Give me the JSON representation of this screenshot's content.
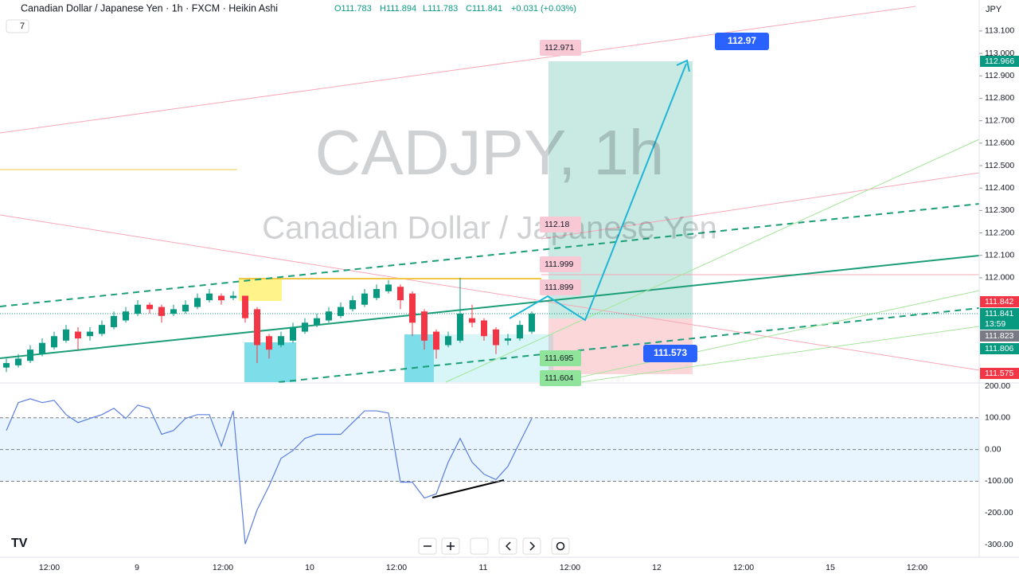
{
  "header": {
    "symbol": "Canadian Dollar / Japanese Yen · 1h · FXCM · Heikin Ashi",
    "open": "O111.783",
    "high": "H111.894",
    "low": "L111.783",
    "close": "C111.841",
    "change": "+0.031 (+0.03%)",
    "indicators_count": "7",
    "currency": "JPY"
  },
  "watermark": {
    "title": "CADJPY, 1h",
    "subtitle": "Canadian Dollar / Japanese Yen"
  },
  "chart_data": {
    "type": "candlestick",
    "ylim": [
      111.535,
      113.238
    ],
    "yticks": [
      {
        "value": 112.0,
        "label": "112.000"
      },
      {
        "value": 112.1,
        "label": "112.100"
      },
      {
        "value": 112.2,
        "label": "112.200"
      },
      {
        "value": 112.3,
        "label": "112.300"
      },
      {
        "value": 112.4,
        "label": "112.400"
      },
      {
        "value": 112.5,
        "label": "112.500"
      },
      {
        "value": 112.6,
        "label": "112.600"
      },
      {
        "value": 112.7,
        "label": "112.700"
      },
      {
        "value": 112.8,
        "label": "112.800"
      },
      {
        "value": 112.9,
        "label": "112.900"
      },
      {
        "value": 113.0,
        "label": "113.000"
      },
      {
        "value": 113.1,
        "label": "113.100"
      }
    ],
    "up_color": "#089981",
    "down_color": "#f23645",
    "candles": [
      [
        111.6,
        111.64,
        111.58,
        111.62
      ],
      [
        111.61,
        111.66,
        111.6,
        111.64
      ],
      [
        111.63,
        111.7,
        111.62,
        111.68
      ],
      [
        111.66,
        111.73,
        111.65,
        111.71
      ],
      [
        111.69,
        111.76,
        111.68,
        111.74
      ],
      [
        111.72,
        111.79,
        111.71,
        111.77
      ],
      [
        111.76,
        111.78,
        111.68,
        111.73
      ],
      [
        111.74,
        111.78,
        111.72,
        111.76
      ],
      [
        111.75,
        111.81,
        111.74,
        111.79
      ],
      [
        111.78,
        111.85,
        111.77,
        111.83
      ],
      [
        111.81,
        111.87,
        111.8,
        111.85
      ],
      [
        111.84,
        111.9,
        111.83,
        111.88
      ],
      [
        111.88,
        111.89,
        111.84,
        111.86
      ],
      [
        111.87,
        111.88,
        111.8,
        111.83
      ],
      [
        111.84,
        111.88,
        111.83,
        111.86
      ],
      [
        111.85,
        111.9,
        111.84,
        111.88
      ],
      [
        111.87,
        111.93,
        111.86,
        111.91
      ],
      [
        111.9,
        111.95,
        111.89,
        111.93
      ],
      [
        111.92,
        111.93,
        111.88,
        111.9
      ],
      [
        111.91,
        111.94,
        111.9,
        111.92
      ],
      [
        111.92,
        111.92,
        111.8,
        111.82
      ],
      [
        111.86,
        111.87,
        111.62,
        111.7
      ],
      [
        111.74,
        111.75,
        111.64,
        111.68
      ],
      [
        111.7,
        111.76,
        111.69,
        111.74
      ],
      [
        111.72,
        111.8,
        111.71,
        111.78
      ],
      [
        111.76,
        111.82,
        111.75,
        111.8
      ],
      [
        111.79,
        111.84,
        111.78,
        111.82
      ],
      [
        111.81,
        111.87,
        111.8,
        111.85
      ],
      [
        111.83,
        111.89,
        111.82,
        111.87
      ],
      [
        111.86,
        111.92,
        111.85,
        111.9
      ],
      [
        111.88,
        111.95,
        111.87,
        111.93
      ],
      [
        111.91,
        111.97,
        111.9,
        111.95
      ],
      [
        111.94,
        111.99,
        111.93,
        111.97
      ],
      [
        111.96,
        111.97,
        111.86,
        111.9
      ],
      [
        111.93,
        111.94,
        111.74,
        111.8
      ],
      [
        111.85,
        111.86,
        111.68,
        111.72
      ],
      [
        111.76,
        111.77,
        111.64,
        111.68
      ],
      [
        111.7,
        111.76,
        111.69,
        111.74
      ],
      [
        111.72,
        112.0,
        111.71,
        111.84
      ],
      [
        111.82,
        111.88,
        111.78,
        111.8
      ],
      [
        111.81,
        111.82,
        111.72,
        111.74
      ],
      [
        111.77,
        111.78,
        111.66,
        111.7
      ],
      [
        111.72,
        111.75,
        111.7,
        111.73
      ],
      [
        111.73,
        111.81,
        111.72,
        111.79
      ],
      [
        111.76,
        111.85,
        111.75,
        111.84
      ]
    ],
    "position_labels": [
      112.971,
      112.18,
      111.999,
      111.899,
      111.695,
      111.604
    ],
    "callouts": [
      112.97,
      111.573
    ],
    "axis_badges": [
      112.966,
      111.842,
      111.841,
      "13:59",
      111.823,
      111.806,
      111.575
    ],
    "xtick_labels": [
      "12:00",
      "9",
      "12:00",
      "10",
      "12:00",
      "11",
      "12:00",
      "12",
      "12:00",
      "15",
      "12:00"
    ],
    "cci": {
      "ylim": [
        -340,
        207.5
      ],
      "yticks": [
        {
          "value": 200,
          "label": "200.00"
        },
        {
          "value": 100,
          "label": "100.00"
        },
        {
          "value": 0,
          "label": "0.00"
        },
        {
          "value": -100,
          "label": "-100.00"
        },
        {
          "value": -200,
          "label": "-200.00"
        },
        {
          "value": -300,
          "label": "-300.00"
        }
      ],
      "color": "#5b7fe0",
      "values": [
        60,
        148,
        160,
        148,
        155,
        110,
        85,
        98,
        110,
        130,
        98,
        140,
        130,
        48,
        60,
        98,
        110,
        110,
        10,
        122,
        -298,
        -190,
        -115,
        -28,
        -3,
        35,
        48,
        48,
        48,
        85,
        122,
        122,
        115,
        -103,
        -103,
        -153,
        -140,
        -40,
        35,
        -40,
        -78,
        -95,
        -53,
        23,
        98
      ]
    }
  }
}
